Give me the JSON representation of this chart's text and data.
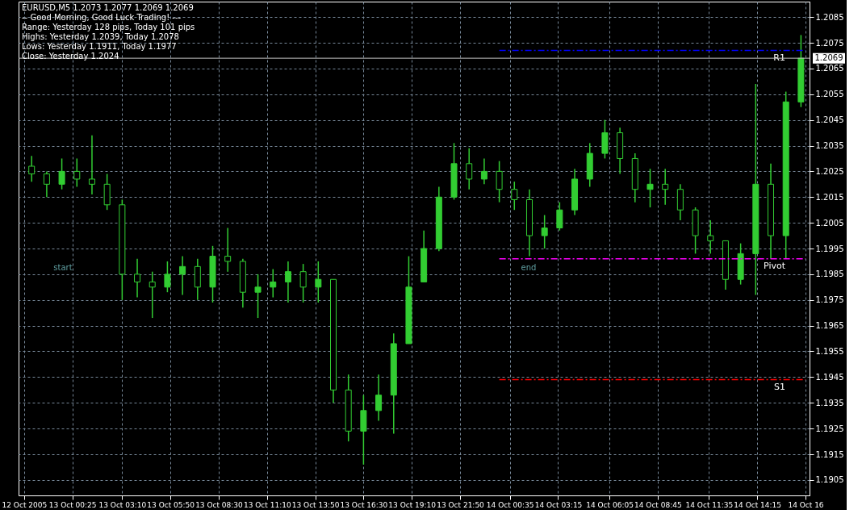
{
  "chart_data": {
    "type": "candlestick",
    "title": "EURUSD,M5  1.2073 1.2077 1.2069 1.2069",
    "subtitle": "-- Good Morning, Good Luck Trading! ---",
    "annotations": [
      "Range: Yesterday 128 pips, Today 101 pips",
      "Highs: Yesterday 1.2039, Today 1.2078",
      "Lows: Yesterday 1.1911, Today 1.1977",
      "Close: Yesterday 1.2024",
      "start",
      "end"
    ],
    "x": [
      "2005-10-12T22:10",
      "2005-10-12T23:00",
      "2005-10-12T23:50",
      "2005-10-13T00:40",
      "2005-10-13T01:30",
      "2005-10-13T02:20",
      "2005-10-13T03:10",
      "2005-10-13T04:00",
      "2005-10-13T04:50",
      "2005-10-13T05:40",
      "2005-10-13T06:30",
      "2005-10-13T07:20",
      "2005-10-13T08:10",
      "2005-10-13T09:00",
      "2005-10-13T09:50",
      "2005-10-13T10:40",
      "2005-10-13T11:30",
      "2005-10-13T12:20",
      "2005-10-13T13:10",
      "2005-10-13T14:00",
      "2005-10-13T14:50",
      "2005-10-13T15:40",
      "2005-10-13T16:30",
      "2005-10-13T17:20",
      "2005-10-13T18:10",
      "2005-10-13T19:00",
      "2005-10-13T19:50",
      "2005-10-13T20:40",
      "2005-10-13T21:30",
      "2005-10-13T22:20",
      "2005-10-13T23:10",
      "2005-10-14T00:00",
      "2005-10-14T00:50",
      "2005-10-14T01:40",
      "2005-10-14T02:30",
      "2005-10-14T03:20",
      "2005-10-14T04:10",
      "2005-10-14T05:00",
      "2005-10-14T05:50",
      "2005-10-14T06:40",
      "2005-10-14T07:30",
      "2005-10-14T08:20",
      "2005-10-14T09:10",
      "2005-10-14T10:00",
      "2005-10-14T10:50",
      "2005-10-14T11:40",
      "2005-10-14T12:30",
      "2005-10-14T13:20",
      "2005-10-14T14:10",
      "2005-10-14T15:00",
      "2005-10-14T15:50",
      "2005-10-14T16:40"
    ],
    "series": [
      {
        "color": "#32cd32",
        "ohlc": [
          [
            1.2027,
            1.2031,
            1.2021,
            1.2024
          ],
          [
            1.2024,
            1.2025,
            1.2015,
            1.202
          ],
          [
            1.202,
            1.203,
            1.2018,
            1.2025
          ],
          [
            1.2025,
            1.203,
            1.2019,
            1.2022
          ],
          [
            1.2022,
            1.2039,
            1.2016,
            1.202
          ],
          [
            1.202,
            1.2024,
            1.201,
            1.2012
          ],
          [
            1.2012,
            1.2014,
            1.1975,
            1.1985
          ],
          [
            1.1985,
            1.1991,
            1.1976,
            1.1982
          ],
          [
            1.1982,
            1.1986,
            1.1968,
            1.198
          ],
          [
            1.198,
            1.199,
            1.1978,
            1.1985
          ],
          [
            1.1985,
            1.1992,
            1.1977,
            1.1988
          ],
          [
            1.1988,
            1.1991,
            1.1975,
            1.198
          ],
          [
            1.198,
            1.1996,
            1.1974,
            1.1992
          ],
          [
            1.1992,
            1.2003,
            1.1986,
            1.199
          ],
          [
            1.199,
            1.1991,
            1.1972,
            1.1978
          ],
          [
            1.1978,
            1.1985,
            1.1968,
            1.198
          ],
          [
            1.198,
            1.1987,
            1.1976,
            1.1982
          ],
          [
            1.1982,
            1.199,
            1.1974,
            1.1986
          ],
          [
            1.1986,
            1.1989,
            1.1974,
            1.198
          ],
          [
            1.198,
            1.199,
            1.1974,
            1.1983
          ],
          [
            1.1983,
            1.1983,
            1.1935,
            1.194
          ],
          [
            1.194,
            1.1946,
            1.192,
            1.1924
          ],
          [
            1.1924,
            1.1938,
            1.1911,
            1.1932
          ],
          [
            1.1932,
            1.1946,
            1.1928,
            1.1938
          ],
          [
            1.1938,
            1.1962,
            1.1923,
            1.1958
          ],
          [
            1.1958,
            1.1992,
            1.1958,
            1.198
          ],
          [
            1.1982,
            1.2002,
            1.1982,
            1.1995
          ],
          [
            1.1995,
            1.2019,
            1.1994,
            1.2015
          ],
          [
            1.2015,
            1.2036,
            1.2014,
            1.2028
          ],
          [
            1.2028,
            1.2034,
            1.2018,
            1.2022
          ],
          [
            1.2022,
            1.203,
            1.202,
            1.2025
          ],
          [
            1.2025,
            1.2029,
            1.2013,
            1.2018
          ],
          [
            1.2018,
            1.2021,
            1.201,
            1.2014
          ],
          [
            1.2014,
            1.2018,
            1.1992,
            1.2
          ],
          [
            1.2,
            1.2008,
            1.1995,
            1.2003
          ],
          [
            1.2003,
            1.2013,
            1.2002,
            1.201
          ],
          [
            1.201,
            1.2026,
            1.2008,
            1.2022
          ],
          [
            1.2022,
            1.2036,
            1.2019,
            1.2032
          ],
          [
            1.2032,
            1.2045,
            1.203,
            1.204
          ],
          [
            1.204,
            1.2042,
            1.2024,
            1.203
          ],
          [
            1.203,
            1.2032,
            1.2013,
            1.2018
          ],
          [
            1.2018,
            1.2026,
            1.2011,
            1.202
          ],
          [
            1.202,
            1.2026,
            1.2012,
            1.2018
          ],
          [
            1.2018,
            1.202,
            1.2006,
            1.201
          ],
          [
            1.201,
            1.2011,
            1.1993,
            1.2
          ],
          [
            1.2,
            1.2006,
            1.1993,
            1.1998
          ],
          [
            1.1998,
            1.1998,
            1.1979,
            1.1983
          ],
          [
            1.1983,
            1.1997,
            1.1981,
            1.1993
          ],
          [
            1.1993,
            1.2059,
            1.1977,
            1.202
          ],
          [
            1.202,
            1.2028,
            1.1991,
            1.2
          ],
          [
            1.2,
            1.2056,
            1.1991,
            1.2052
          ],
          [
            1.2052,
            1.2078,
            1.205,
            1.2069
          ]
        ]
      },
      {
        "type": "line",
        "name": "R1",
        "color": "#0000ff",
        "line_style": "dashed",
        "x": [
          "2005-10-14T00:00",
          "2005-10-14T16:55"
        ],
        "values": [
          1.2072,
          1.2072
        ]
      },
      {
        "type": "line",
        "name": "Pivot",
        "color": "#ff00ff",
        "line_style": "dashed",
        "x": [
          "2005-10-14T00:00",
          "2005-10-14T16:55"
        ],
        "values": [
          1.1991,
          1.1991
        ]
      },
      {
        "type": "line",
        "name": "S1",
        "color": "#ff0000",
        "line_style": "dashed",
        "x": [
          "2005-10-14T00:00",
          "2005-10-14T16:55"
        ],
        "values": [
          1.1944,
          1.1944
        ]
      }
    ],
    "ref_lines": [
      {
        "axis": "y",
        "value": 1.2069,
        "label": "1.2069",
        "color": "#c0c0c0"
      }
    ],
    "xlim": [
      "2005-10-12T21:40",
      "2005-10-14T16:55"
    ],
    "xticks": [
      {
        "value": "2005-10-12T21:45",
        "label": "12 Oct 2005"
      },
      {
        "value": "2005-10-13T00:25",
        "label": "13 Oct 00:25"
      },
      {
        "value": "2005-10-13T03:10",
        "label": "13 Oct 03:10"
      },
      {
        "value": "2005-10-13T05:50",
        "label": "13 Oct 05:50"
      },
      {
        "value": "2005-10-13T08:30",
        "label": "13 Oct 08:30"
      },
      {
        "value": "2005-10-13T11:10",
        "label": "13 Oct 11:10"
      },
      {
        "value": "2005-10-13T13:50",
        "label": "13 Oct 13:50"
      },
      {
        "value": "2005-10-13T16:30",
        "label": "13 Oct 16:30"
      },
      {
        "value": "2005-10-13T19:10",
        "label": "13 Oct 19:10"
      },
      {
        "value": "2005-10-13T21:50",
        "label": "13 Oct 21:50"
      },
      {
        "value": "2005-10-14T00:35",
        "label": "14 Oct 00:35"
      },
      {
        "value": "2005-10-14T03:15",
        "label": "14 Oct 03:15"
      },
      {
        "value": "2005-10-14T06:05",
        "label": "14 Oct 06:05"
      },
      {
        "value": "2005-10-14T08:45",
        "label": "14 Oct 08:45"
      },
      {
        "value": "2005-10-14T11:35",
        "label": "14 Oct 11:35"
      },
      {
        "value": "2005-10-14T14:15",
        "label": "14 Oct 14:15"
      },
      {
        "value": "2005-10-14T16:55",
        "label": "14 Oct 16"
      }
    ],
    "ylim": [
      1.1899,
      1.2091
    ],
    "yticks": [
      1.1905,
      1.1915,
      1.1925,
      1.1935,
      1.1945,
      1.1955,
      1.1965,
      1.1975,
      1.1985,
      1.1995,
      1.2005,
      1.2015,
      1.2025,
      1.2035,
      1.2045,
      1.2055,
      1.2065,
      1.2075,
      1.2085
    ],
    "grid": true
  }
}
